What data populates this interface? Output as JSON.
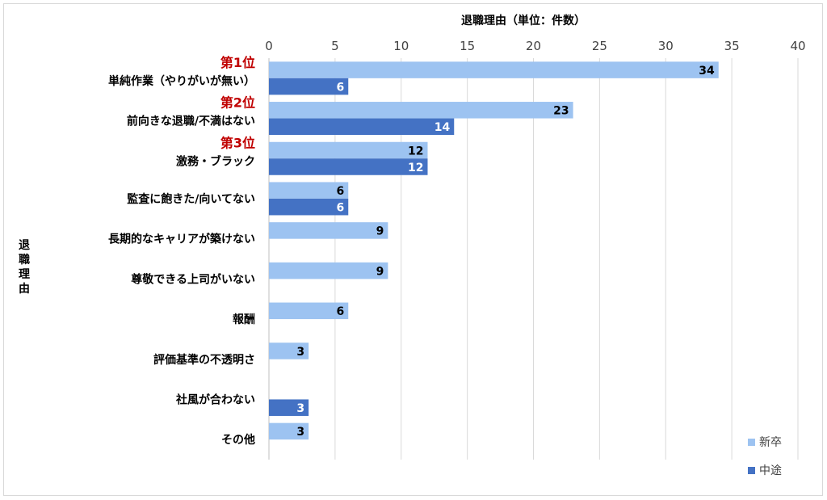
{
  "chart_data": {
    "type": "bar",
    "orientation": "horizontal",
    "title": "退職理由（単位：件数）",
    "xlabel": "退職理由（単位：件数）",
    "ylabel": "退職理由",
    "xlim": [
      0,
      40
    ],
    "xticks": [
      0,
      5,
      10,
      15,
      20,
      25,
      30,
      35,
      40
    ],
    "grid": true,
    "legend_position": "bottom-right",
    "categories": [
      "単純作業（やりがいが無い）",
      "前向きな退職/不満はない",
      "激務・ブラック",
      "監査に飽きた/向いてない",
      "長期的なキャリアが築けない",
      "尊敬できる上司がいない",
      "報酬",
      "評価基準の不透明さ",
      "社風が合わない",
      "その他"
    ],
    "rank_labels": [
      "第1位",
      "第2位",
      "第3位"
    ],
    "series": [
      {
        "name": "新卒",
        "color": "#9dc3f1",
        "label_color": "#000000",
        "values": [
          34,
          23,
          12,
          6,
          9,
          9,
          6,
          3,
          null,
          3
        ]
      },
      {
        "name": "中途",
        "color": "#4472c4",
        "label_color": "#ffffff",
        "values": [
          6,
          14,
          12,
          6,
          null,
          null,
          null,
          null,
          3,
          null
        ]
      }
    ]
  }
}
